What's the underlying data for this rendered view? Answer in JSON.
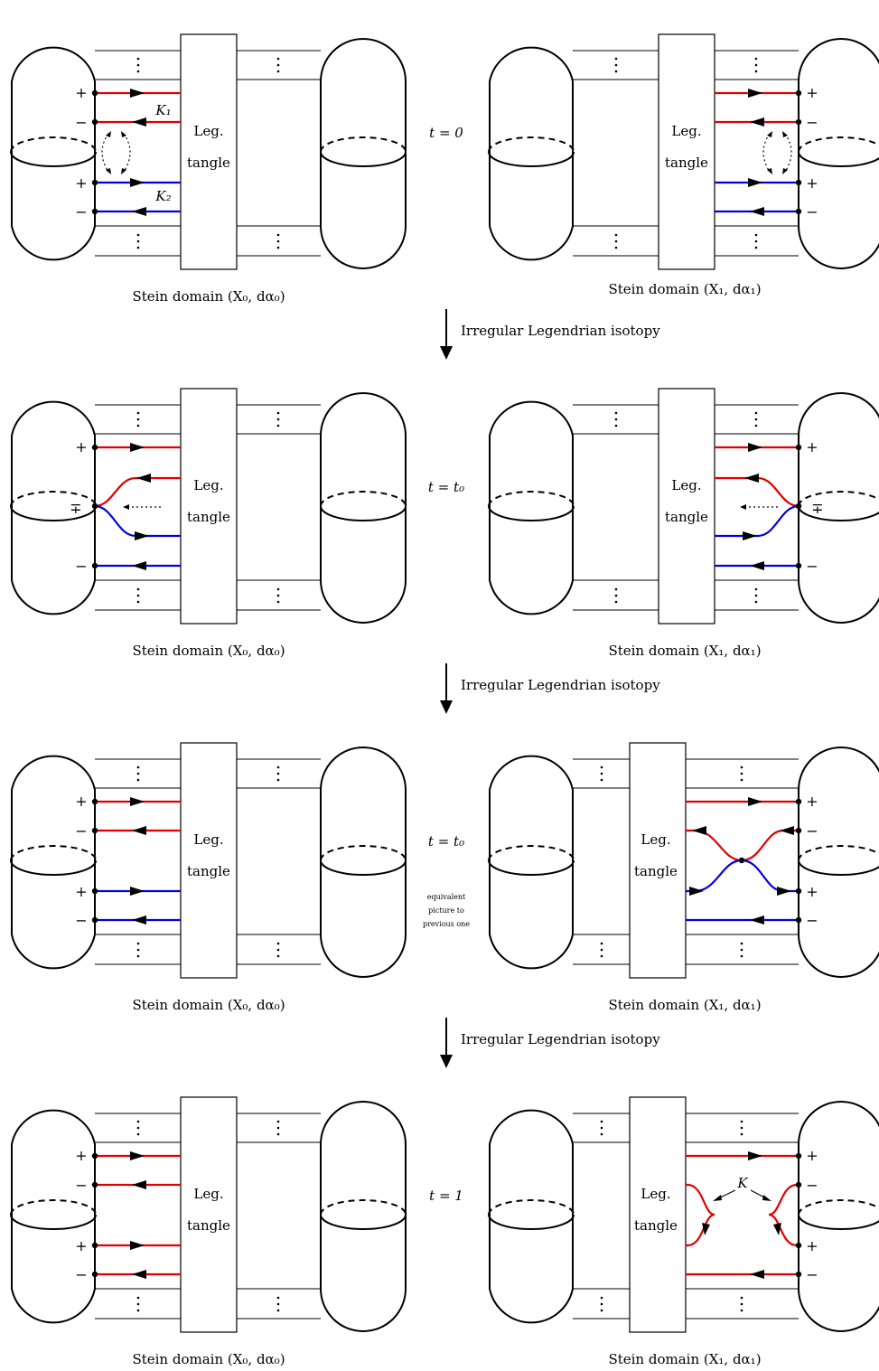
{
  "rows": [
    {
      "time_label": "t = 0",
      "note": "",
      "left": {
        "caption": "Stein domain (X₀, dα₀)",
        "box_label": [
          "Leg.",
          "tangle"
        ],
        "signs": [
          "+",
          "−",
          "+",
          "−"
        ],
        "knot_labels": [
          "K₁",
          "K₂"
        ]
      },
      "right": {
        "caption": "Stein domain (X₁, dα₁)",
        "box_label": [
          "Leg.",
          "tangle"
        ],
        "signs": [
          "+",
          "−",
          "+",
          "−"
        ]
      }
    },
    {
      "time_label": "t = t₀",
      "note": "",
      "left": {
        "caption": "Stein domain (X₀, dα₀)",
        "box_label": [
          "Leg.",
          "tangle"
        ],
        "signs": [
          "+",
          "∓",
          "−"
        ]
      },
      "right": {
        "caption": "Stein domain (X₁, dα₁)",
        "box_label": [
          "Leg.",
          "tangle"
        ],
        "signs": [
          "+",
          "∓",
          "−"
        ]
      }
    },
    {
      "time_label": "t = t₀",
      "note": [
        "equivalent",
        "picture to",
        "previous one"
      ],
      "left": {
        "caption": "Stein domain (X₀, dα₀)",
        "box_label": [
          "Leg.",
          "tangle"
        ],
        "signs": [
          "+",
          "−",
          "+",
          "−"
        ]
      },
      "right": {
        "caption": "Stein domain (X₁, dα₁)",
        "box_label": [
          "Leg.",
          "tangle"
        ],
        "signs": [
          "+",
          "−",
          "+",
          "−"
        ]
      }
    },
    {
      "time_label": "t = 1",
      "note": "",
      "left": {
        "caption": "Stein domain (X₀, dα₀)",
        "box_label": [
          "Leg.",
          "tangle"
        ],
        "signs": [
          "+",
          "−",
          "+",
          "−"
        ]
      },
      "right": {
        "caption": "Stein domain (X₁, dα₁)",
        "box_label": [
          "Leg.",
          "tangle"
        ],
        "signs": [
          "+",
          "−",
          "+",
          "−"
        ],
        "knot_label": "K"
      }
    }
  ],
  "arrow_label": "Irregular Legendrian isotopy",
  "colors": {
    "red": "#e00000",
    "blue": "#0000e0",
    "black": "#000000"
  }
}
